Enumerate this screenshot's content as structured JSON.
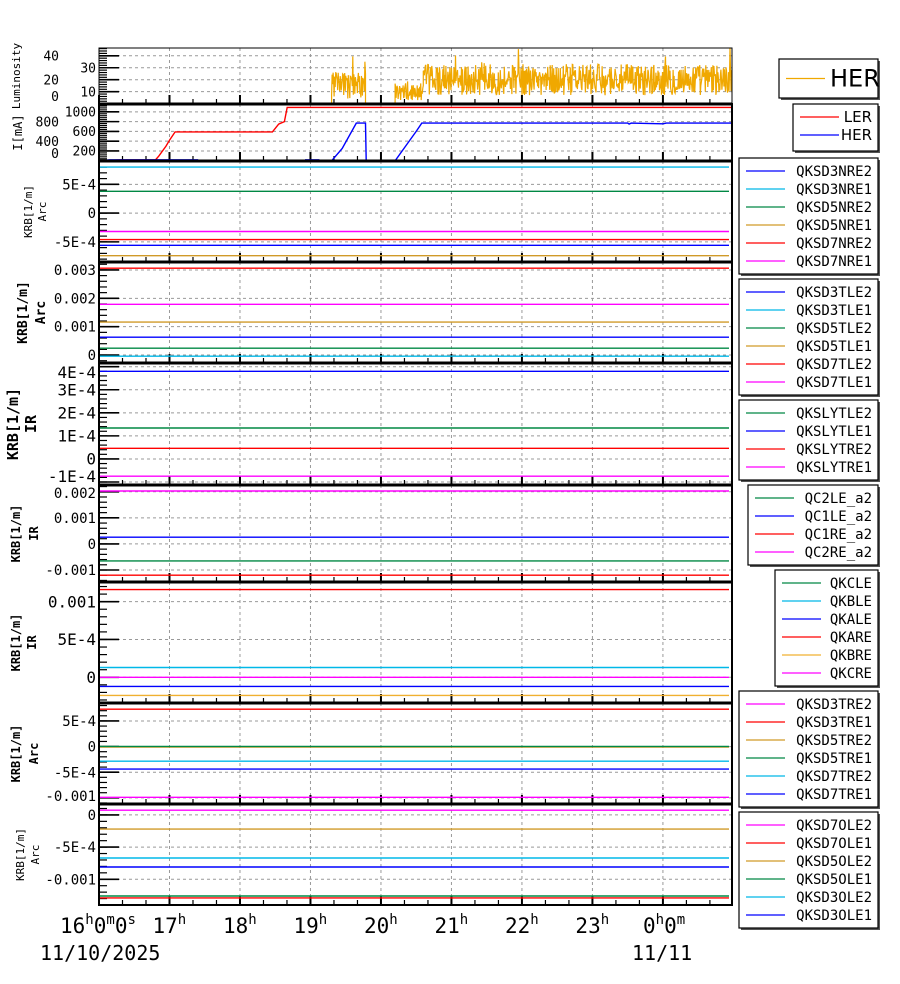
{
  "chart_data": [
    {
      "type": "line",
      "id": "luminosity",
      "ylabel": [
        "Luminosity"
      ],
      "ylim": [
        -0.3,
        46.5
      ],
      "yticks": [
        {
          "v": 0,
          "t": "0"
        },
        {
          "v": 10,
          "t": "10"
        },
        {
          "v": 20,
          "t": "20"
        },
        {
          "v": 30,
          "t": "30"
        },
        {
          "v": 40,
          "t": "40"
        }
      ],
      "noise_series": [
        {
          "name": "HER",
          "color": "#f0a800",
          "segments": [
            {
              "from": 16,
              "to": 19.3,
              "mean": 0,
              "spread": 0
            },
            {
              "from": 19.3,
              "to": 19.78,
              "mean": 15,
              "spread": 11
            },
            {
              "from": 19.78,
              "to": 20.2,
              "mean": 0,
              "spread": 0
            },
            {
              "from": 20.2,
              "to": 20.6,
              "mean": 9,
              "spread": 8
            },
            {
              "from": 20.6,
              "to": 24.98,
              "mean": 20,
              "spread": 13
            }
          ]
        }
      ]
    },
    {
      "type": "line",
      "id": "current",
      "ylabel": [
        "I[mA]"
      ],
      "ylim": [
        -5,
        1160
      ],
      "yticks": [
        {
          "v": 0,
          "t": "0"
        },
        {
          "v": 200,
          "t": "200"
        },
        {
          "v": 400,
          "t": "400"
        },
        {
          "v": 600,
          "t": "600"
        },
        {
          "v": 800,
          "t": "800"
        },
        {
          "v": 1000,
          "t": "1000"
        }
      ],
      "series": [
        {
          "name": "LER",
          "color": "#ff0000",
          "points": [
            [
              16,
              0
            ],
            [
              16.3,
              15
            ],
            [
              16.8,
              15
            ],
            [
              16.85,
              100
            ],
            [
              16.95,
              300
            ],
            [
              17.0,
              420
            ],
            [
              17.08,
              590
            ],
            [
              18.46,
              590
            ],
            [
              18.55,
              750
            ],
            [
              18.63,
              800
            ],
            [
              18.67,
              1090
            ],
            [
              24.98,
              1090
            ]
          ]
        },
        {
          "name": "HER",
          "color": "#0000ff",
          "points": [
            [
              16,
              0
            ],
            [
              16.15,
              20
            ],
            [
              17.4,
              20
            ],
            [
              17.41,
              0
            ],
            [
              18.92,
              0
            ],
            [
              18.93,
              20
            ],
            [
              19.12,
              20
            ],
            [
              19.13,
              0
            ],
            [
              19.3,
              0
            ],
            [
              19.45,
              250
            ],
            [
              19.65,
              770
            ],
            [
              19.78,
              770
            ],
            [
              19.79,
              0
            ],
            [
              20.2,
              0
            ],
            [
              20.35,
              300
            ],
            [
              20.5,
              600
            ],
            [
              20.58,
              770
            ],
            [
              23.5,
              770
            ],
            [
              23.52,
              750
            ],
            [
              23.55,
              770
            ],
            [
              24.0,
              755
            ],
            [
              24.05,
              770
            ],
            [
              24.98,
              770
            ]
          ]
        }
      ]
    },
    {
      "type": "line",
      "id": "krb-arc-nre",
      "ylabel": [
        "KRB[1/m]",
        "Arc"
      ],
      "ylim": [
        -0.00085,
        0.000906
      ],
      "yticks": [
        {
          "v": -0.0005,
          "t": "-5E-4"
        },
        {
          "v": 0,
          "t": "0"
        },
        {
          "v": 0.0005,
          "t": "5E-4"
        }
      ],
      "series": [
        {
          "name": "QKSD3NRE2",
          "color": "#0000ff",
          "value": -0.00056
        },
        {
          "name": "QKSD3NRE1",
          "color": "#00b8e8",
          "value": 0.0008
        },
        {
          "name": "QKSD5NRE2",
          "color": "#008844",
          "value": 0.00038
        },
        {
          "name": "QKSD5NRE1",
          "color": "#d09a28",
          "value": -0.00074
        },
        {
          "name": "QKSD7NRE2",
          "color": "#ff0000",
          "value": -0.00046
        },
        {
          "name": "QKSD7NRE1",
          "color": "#ff00ff",
          "value": -0.00032
        }
      ]
    },
    {
      "type": "line",
      "id": "krb-arc-tle",
      "ylabel": [
        "KRB[1/m]",
        "Arc"
      ],
      "ylim": [
        -0.00028,
        0.00328
      ],
      "yticks": [
        {
          "v": 0,
          "t": "0"
        },
        {
          "v": 0.001,
          "t": "0.001"
        },
        {
          "v": 0.002,
          "t": "0.002"
        },
        {
          "v": 0.003,
          "t": "0.003"
        }
      ],
      "series": [
        {
          "name": "QKSD3TLE2",
          "color": "#0000ff",
          "value": 0.00063
        },
        {
          "name": "QKSD3TLE1",
          "color": "#00b8e8",
          "value": -4e-05
        },
        {
          "name": "QKSD5TLE2",
          "color": "#008844",
          "value": 0.00024
        },
        {
          "name": "QKSD5TLE1",
          "color": "#d09a28",
          "value": 0.00116
        },
        {
          "name": "QKSD7TLE2",
          "color": "#ff0000",
          "value": 0.00306
        },
        {
          "name": "QKSD7TLE1",
          "color": "#ff00ff",
          "value": 0.00179
        }
      ]
    },
    {
      "type": "line",
      "id": "krb-ir-sly",
      "ylabel": [
        "KRB[1/m]",
        "IR"
      ],
      "ylim": [
        -0.000113,
        0.000416
      ],
      "yticks": [
        {
          "v": -0.0001,
          "t": "-1E-4"
        },
        {
          "v": 0,
          "t": "0"
        },
        {
          "v": 0.0001,
          "t": "1E-4"
        },
        {
          "v": 0.0002,
          "t": "2E-4"
        },
        {
          "v": 0.0003,
          "t": "3E-4"
        },
        {
          "v": 0.0004,
          "t": "4E-4"
        }
      ],
      "series": [
        {
          "name": "QKSLYTLE2",
          "color": "#008844",
          "value": 0.000134
        },
        {
          "name": "QKSLYTLE1",
          "color": "#0000ff",
          "value": 0.00038
        },
        {
          "name": "QKSLYTRE2",
          "color": "#ff0000",
          "value": 4.6e-05
        },
        {
          "name": "QKSLYTRE1",
          "color": "#ff00ff",
          "value": -7.5e-05
        }
      ]
    },
    {
      "type": "line",
      "id": "krb-ir-qc",
      "ylabel": [
        "KRB[1/m]",
        "IR"
      ],
      "ylim": [
        -0.00146,
        0.00226
      ],
      "yticks": [
        {
          "v": -0.001,
          "t": "-0.001"
        },
        {
          "v": 0,
          "t": "0"
        },
        {
          "v": 0.001,
          "t": "0.001"
        },
        {
          "v": 0.002,
          "t": "0.002"
        }
      ],
      "series": [
        {
          "name": "QC2LE_a2",
          "color": "#008844",
          "value": -0.00065
        },
        {
          "name": "QC1LE_a2",
          "color": "#0000ff",
          "value": 0.00026
        },
        {
          "name": "QC1RE_a2",
          "color": "#ff0000",
          "value": -0.0012
        },
        {
          "name": "QC2RE_a2",
          "color": "#ff00ff",
          "value": 0.00203
        }
      ]
    },
    {
      "type": "line",
      "id": "krb-ir-qk",
      "ylabel": [
        "KRB[1/m]",
        "IR"
      ],
      "ylim": [
        -0.00034,
        0.00126
      ],
      "yticks": [
        {
          "v": 0,
          "t": "0"
        },
        {
          "v": 0.0005,
          "t": "5E-4"
        },
        {
          "v": 0.001,
          "t": "0.001"
        }
      ],
      "series": [
        {
          "name": "QKCLE",
          "color": "#008844",
          "value": -0.00036
        },
        {
          "name": "QKBLE",
          "color": "#00b8e8",
          "value": 0.00013
        },
        {
          "name": "QKALE",
          "color": "#0000ff",
          "value": -0.00012
        },
        {
          "name": "QKARE",
          "color": "#ff0000",
          "value": 0.00116
        },
        {
          "name": "QKBRE",
          "color": "#f0b030",
          "value": -0.00024
        },
        {
          "name": "QKCRE",
          "color": "#ff00ff",
          "value": 0
        }
      ]
    },
    {
      "type": "line",
      "id": "krb-arc-tre",
      "ylabel": [
        "KRB[1/m]",
        "Arc"
      ],
      "ylim": [
        -0.00112,
        0.00085
      ],
      "yticks": [
        {
          "v": -0.001,
          "t": "-0.001"
        },
        {
          "v": -0.0005,
          "t": "-5E-4"
        },
        {
          "v": 0,
          "t": "0"
        },
        {
          "v": 0.0005,
          "t": "5E-4"
        }
      ],
      "series": [
        {
          "name": "QKSD3TRE2",
          "color": "#ff00ff",
          "value": -0.00099
        },
        {
          "name": "QKSD3TRE1",
          "color": "#ff0000",
          "value": 0.00073
        },
        {
          "name": "QKSD5TRE2",
          "color": "#d09a28",
          "value": -1e-05
        },
        {
          "name": "QKSD5TRE1",
          "color": "#008844",
          "value": 3e-06
        },
        {
          "name": "QKSD7TRE2",
          "color": "#00b8e8",
          "value": -0.000285
        },
        {
          "name": "QKSD7TRE1",
          "color": "#0000ff",
          "value": -0.00044
        }
      ]
    },
    {
      "type": "line",
      "id": "krb-arc-ole",
      "ylabel": [
        "KRB[1/m]",
        "Arc"
      ],
      "ylim": [
        -0.0014,
        0.00017
      ],
      "yticks": [
        {
          "v": -0.001,
          "t": "-0.001"
        },
        {
          "v": -0.0005,
          "t": "-5E-4"
        },
        {
          "v": 0,
          "t": "0"
        }
      ],
      "series": [
        {
          "name": "QKSD7OLE2",
          "color": "#ff00ff",
          "value": 7.3e-05
        },
        {
          "name": "QKSD7OLE1",
          "color": "#ff0000",
          "value": -0.00129
        },
        {
          "name": "QKSD5OLE2",
          "color": "#d09a28",
          "value": -0.00022
        },
        {
          "name": "QKSD5OLE1",
          "color": "#008844",
          "value": -0.00126
        },
        {
          "name": "QKSD3OLE2",
          "color": "#00b8e8",
          "value": -0.00067
        },
        {
          "name": "QKSD3OLE1",
          "color": "#0000ff",
          "value": -0.00081
        }
      ]
    }
  ],
  "xaxis": {
    "unit": "hour",
    "xlim": [
      16,
      24.98
    ],
    "ticks": [
      {
        "v": 16,
        "parts": [
          [
            "16",
            "h"
          ],
          [
            "0",
            "m"
          ],
          [
            "0",
            "s"
          ]
        ]
      },
      {
        "v": 17,
        "parts": [
          [
            "17",
            "h"
          ]
        ]
      },
      {
        "v": 18,
        "parts": [
          [
            "18",
            "h"
          ]
        ]
      },
      {
        "v": 19,
        "parts": [
          [
            "19",
            "h"
          ]
        ]
      },
      {
        "v": 20,
        "parts": [
          [
            "20",
            "h"
          ]
        ]
      },
      {
        "v": 21,
        "parts": [
          [
            "21",
            "h"
          ]
        ]
      },
      {
        "v": 22,
        "parts": [
          [
            "22",
            "h"
          ]
        ]
      },
      {
        "v": 23,
        "parts": [
          [
            "23",
            "h"
          ]
        ]
      },
      {
        "v": 24,
        "parts": [
          [
            "0",
            "h"
          ],
          [
            "0",
            "m"
          ]
        ]
      }
    ],
    "dates": [
      {
        "v": 16,
        "t": "11/10/2025"
      },
      {
        "v": 24,
        "t": "11/11"
      }
    ]
  }
}
